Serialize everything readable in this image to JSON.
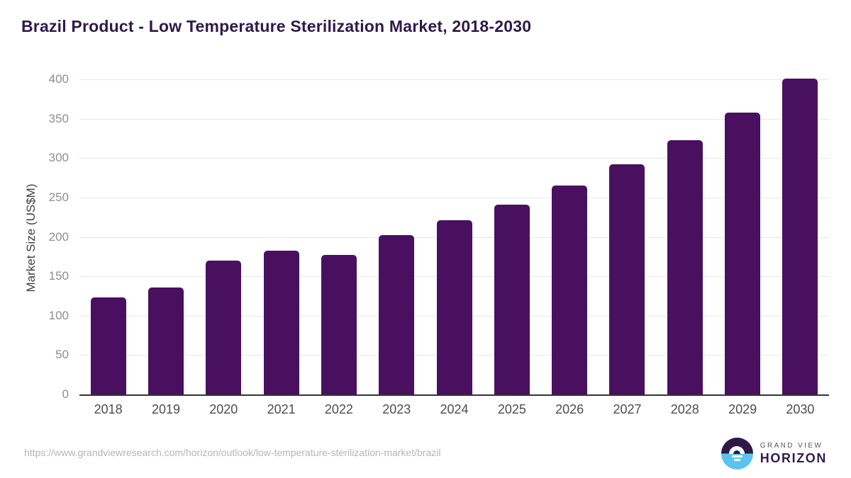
{
  "title": "Brazil Product - Low Temperature Sterilization Market, 2018-2030",
  "chart_data": {
    "type": "bar",
    "title": "Brazil Product - Low Temperature Sterilization Market, 2018-2030",
    "categories": [
      "2018",
      "2019",
      "2020",
      "2021",
      "2022",
      "2023",
      "2024",
      "2025",
      "2026",
      "2027",
      "2028",
      "2029",
      "2030"
    ],
    "values": [
      124,
      137,
      171,
      183,
      178,
      203,
      222,
      242,
      266,
      293,
      324,
      359,
      402
    ],
    "xlabel": "",
    "ylabel": "Market Size (US$M)",
    "ylim": [
      0,
      400
    ],
    "ytick_step": 50,
    "grid": true,
    "legend": "none",
    "bar_color": "#4a1060",
    "gridline_color": "#e7e7e7",
    "axis_line_color": "#333333",
    "tick_label_color": "#8e8e8e",
    "category_label_color": "#4d4d4d"
  },
  "footer": {
    "source_url": "https://www.grandviewresearch.com/horizon/outlook/low-temperature-sterilization-market/brazil",
    "logo": {
      "line1": "GRAND VIEW",
      "line2": "HORIZON",
      "mark_top_color": "#2d1a47",
      "mark_bottom_color": "#5ac4ee"
    }
  }
}
